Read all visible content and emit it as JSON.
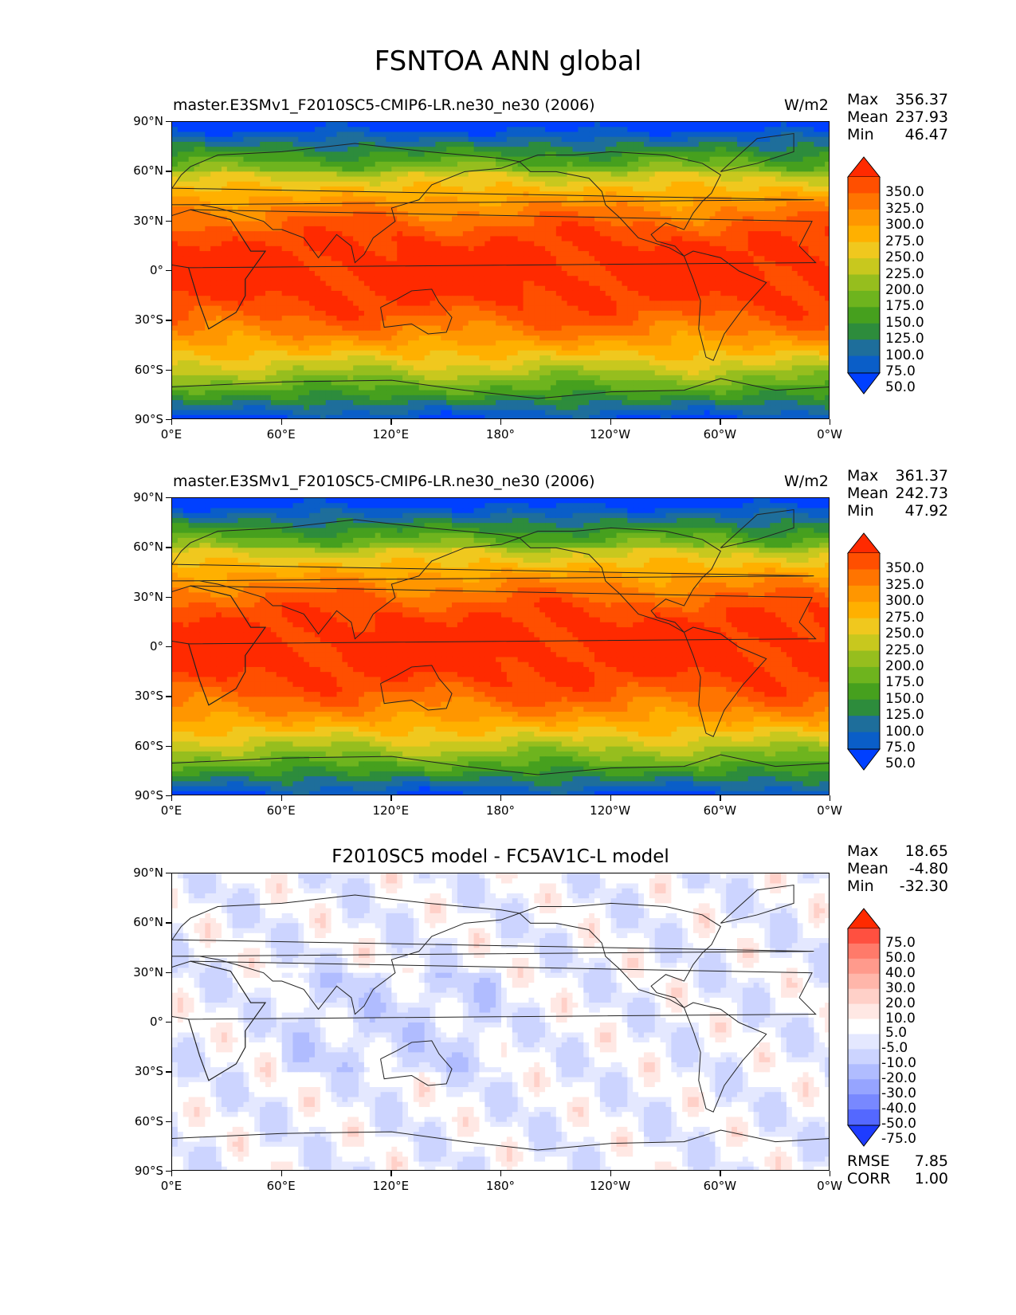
{
  "title": "FSNTOA ANN global",
  "tick_labels": {
    "y": [
      "90°N",
      "60°N",
      "30°N",
      "0°",
      "30°S",
      "60°S",
      "90°S"
    ],
    "x": [
      "0°E",
      "60°E",
      "120°E",
      "180°",
      "120°W",
      "60°W",
      "0°W"
    ]
  },
  "colormaps": {
    "field": {
      "levels": [
        "350.0",
        "325.0",
        "300.0",
        "275.0",
        "250.0",
        "225.0",
        "200.0",
        "175.0",
        "150.0",
        "125.0",
        "100.0",
        "75.0",
        "50.0"
      ],
      "colors": [
        "#ff2a00",
        "#ff4f00",
        "#ff7400",
        "#ff9600",
        "#ffb000",
        "#f0c81e",
        "#c8c81e",
        "#96be1e",
        "#6eb41e",
        "#46a01e",
        "#2d8c3c",
        "#1e6e9b",
        "#0a5ec8",
        "#0040ff"
      ]
    },
    "diff": {
      "levels": [
        "75.0",
        "50.0",
        "40.0",
        "30.0",
        "20.0",
        "10.0",
        "5.0",
        "-5.0",
        "-10.0",
        "-20.0",
        "-30.0",
        "-40.0",
        "-50.0",
        "-75.0"
      ],
      "colors": [
        "#ff2a00",
        "#ff5040",
        "#ff7a6a",
        "#ff9a8c",
        "#ffb6aa",
        "#ffd0c8",
        "#ffe8e4",
        "#ffffff",
        "#e4e8ff",
        "#ccd4ff",
        "#b0bcff",
        "#96a4ff",
        "#7888ff",
        "#5468ff",
        "#1e3cff"
      ]
    }
  },
  "panels": [
    {
      "title": "master.E3SMv1_F2010SC5-CMIP6-LR.ne30_ne30 (2006)",
      "units": "W/m2",
      "stats": [
        {
          "label": "Max",
          "value": "356.37"
        },
        {
          "label": "Mean",
          "value": "237.93"
        },
        {
          "label": "Min",
          "value": "46.47"
        }
      ],
      "colormap": "field"
    },
    {
      "title": "master.E3SMv1_F2010SC5-CMIP6-LR.ne30_ne30 (2006)",
      "units": "W/m2",
      "stats": [
        {
          "label": "Max",
          "value": "361.37"
        },
        {
          "label": "Mean",
          "value": "242.73"
        },
        {
          "label": "Min",
          "value": "47.92"
        }
      ],
      "colormap": "field"
    },
    {
      "title": "F2010SC5 model - FC5AV1C-L model",
      "units": "",
      "stats": [
        {
          "label": "Max",
          "value": "18.65"
        },
        {
          "label": "Mean",
          "value": "-4.80"
        },
        {
          "label": "Min",
          "value": "-32.30"
        }
      ],
      "colormap": "diff",
      "metrics": [
        {
          "label": "RMSE",
          "value": "7.85"
        },
        {
          "label": "CORR",
          "value": "1.00"
        }
      ]
    }
  ],
  "chart_data": [
    {
      "type": "heatmap",
      "title": "master.E3SMv1_F2010SC5-CMIP6-LR.ne30_ne30 (2006)",
      "units": "W/m2",
      "xlim": [
        0,
        360
      ],
      "ylim": [
        -90,
        90
      ],
      "zonal_profile": {
        "lat": [
          90,
          75,
          60,
          45,
          30,
          15,
          0,
          -15,
          -30,
          -45,
          -60,
          -75,
          -90
        ],
        "value": [
          60,
          90,
          150,
          225,
          285,
          305,
          310,
          305,
          280,
          220,
          140,
          70,
          55
        ]
      },
      "max": 356.37,
      "mean": 237.93,
      "min": 46.47
    },
    {
      "type": "heatmap",
      "title": "master.E3SMv1_F2010SC5-CMIP6-LR.ne30_ne30 (2006)",
      "units": "W/m2",
      "xlim": [
        0,
        360
      ],
      "ylim": [
        -90,
        90
      ],
      "zonal_profile": {
        "lat": [
          90,
          75,
          60,
          45,
          30,
          15,
          0,
          -15,
          -30,
          -45,
          -60,
          -75,
          -90
        ],
        "value": [
          62,
          95,
          155,
          230,
          290,
          312,
          318,
          310,
          285,
          225,
          145,
          72,
          56
        ]
      },
      "max": 361.37,
      "mean": 242.73,
      "min": 47.92
    },
    {
      "type": "heatmap",
      "title": "F2010SC5 model - FC5AV1C-L model",
      "xlim": [
        0,
        360
      ],
      "ylim": [
        -90,
        90
      ],
      "max": 18.65,
      "mean": -4.8,
      "min": -32.3,
      "rmse": 7.85,
      "corr": 1.0
    }
  ]
}
